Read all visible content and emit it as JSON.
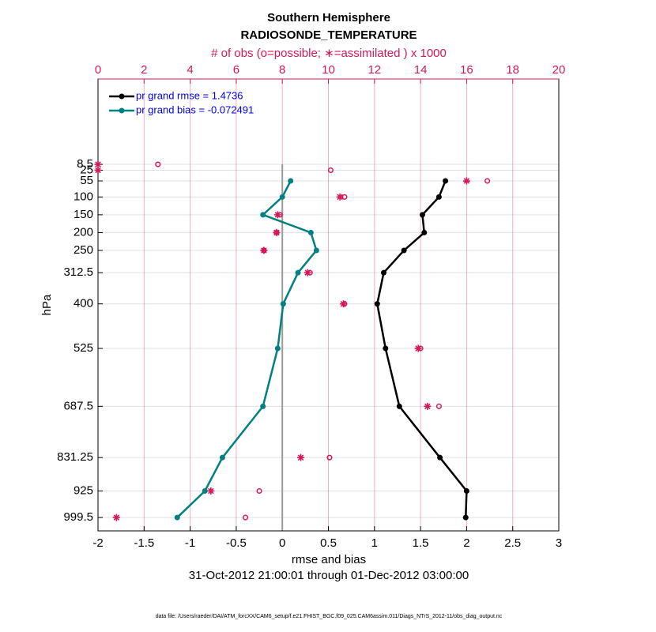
{
  "chart_data": {
    "type": "profile",
    "title": "Southern Hemisphere",
    "subtitle": "RADIOSONDE_TEMPERATURE",
    "top_axis_label": "# of obs (o=possible; ∗=assimilated ) x 1000",
    "xlabel": "rmse and bias",
    "ylabel": "hPa",
    "date_range": "31-Oct-2012 21:00:01 through 01-Dec-2012 03:00:00",
    "footnote": "data file: /Users/raeder/DAI/ATM_forcXX/CAM6_setup/f.e21.FHIST_BGC.f09_025.CAM6assim.011/Diags_NTrS_2012-11/obs_diag_output.nc",
    "y": [
      8.5,
      25,
      55,
      100,
      150,
      200,
      250,
      312.5,
      400,
      525,
      687.5,
      831.25,
      925,
      999.5
    ],
    "ylim": [
      1037,
      -231
    ],
    "yticks": [
      8.5,
      25,
      55,
      100,
      150,
      200,
      250,
      312.5,
      400,
      525,
      687.5,
      831.25,
      925,
      999.5
    ],
    "xlim": [
      -2,
      3
    ],
    "xticks": [
      -2,
      -1.5,
      -1,
      -0.5,
      0,
      0.5,
      1,
      1.5,
      2,
      2.5,
      3
    ],
    "x2lim": [
      0,
      20
    ],
    "x2ticks": [
      0,
      2,
      4,
      6,
      8,
      10,
      12,
      14,
      16,
      18,
      20
    ],
    "bands": [
      [
        1.8,
        15
      ],
      [
        37,
        77
      ],
      [
        127,
        177
      ],
      [
        227,
        277
      ],
      [
        350,
        452
      ],
      [
        600,
        773
      ],
      [
        886,
        962
      ]
    ],
    "band_color": "#cccccc",
    "axis2_color": "#d6175a",
    "legend": "upper left",
    "grid": true,
    "series": [
      {
        "name": "pr grand rmse = 1.4736",
        "color": "#000000",
        "marker": "dot",
        "values": [
          null,
          null,
          1.77,
          1.7,
          1.52,
          1.54,
          1.32,
          1.1,
          1.03,
          1.12,
          1.27,
          1.71,
          2.0,
          1.99
        ]
      },
      {
        "name": "pr grand bias = -0.072491",
        "color": "#008080",
        "marker": "dot",
        "values": [
          null,
          null,
          0.09,
          0.0,
          -0.21,
          0.31,
          0.37,
          0.17,
          0.01,
          -0.05,
          -0.21,
          -0.65,
          -0.84,
          -1.14
        ]
      },
      {
        "color": "#d6175a",
        "marker": "circle",
        "axis": "x2",
        "values": [
          2.6,
          10.1,
          16.9,
          10.7,
          7.9,
          7.75,
          7.2,
          9.2,
          10.7,
          14.0,
          14.8,
          10.05,
          7.0,
          6.4
        ]
      },
      {
        "color": "#d6175a",
        "marker": "star",
        "axis": "x2",
        "values": [
          0,
          0,
          16.0,
          10.5,
          7.8,
          7.75,
          7.2,
          9.1,
          10.65,
          13.9,
          14.3,
          8.8,
          4.9,
          0.8
        ]
      }
    ]
  }
}
